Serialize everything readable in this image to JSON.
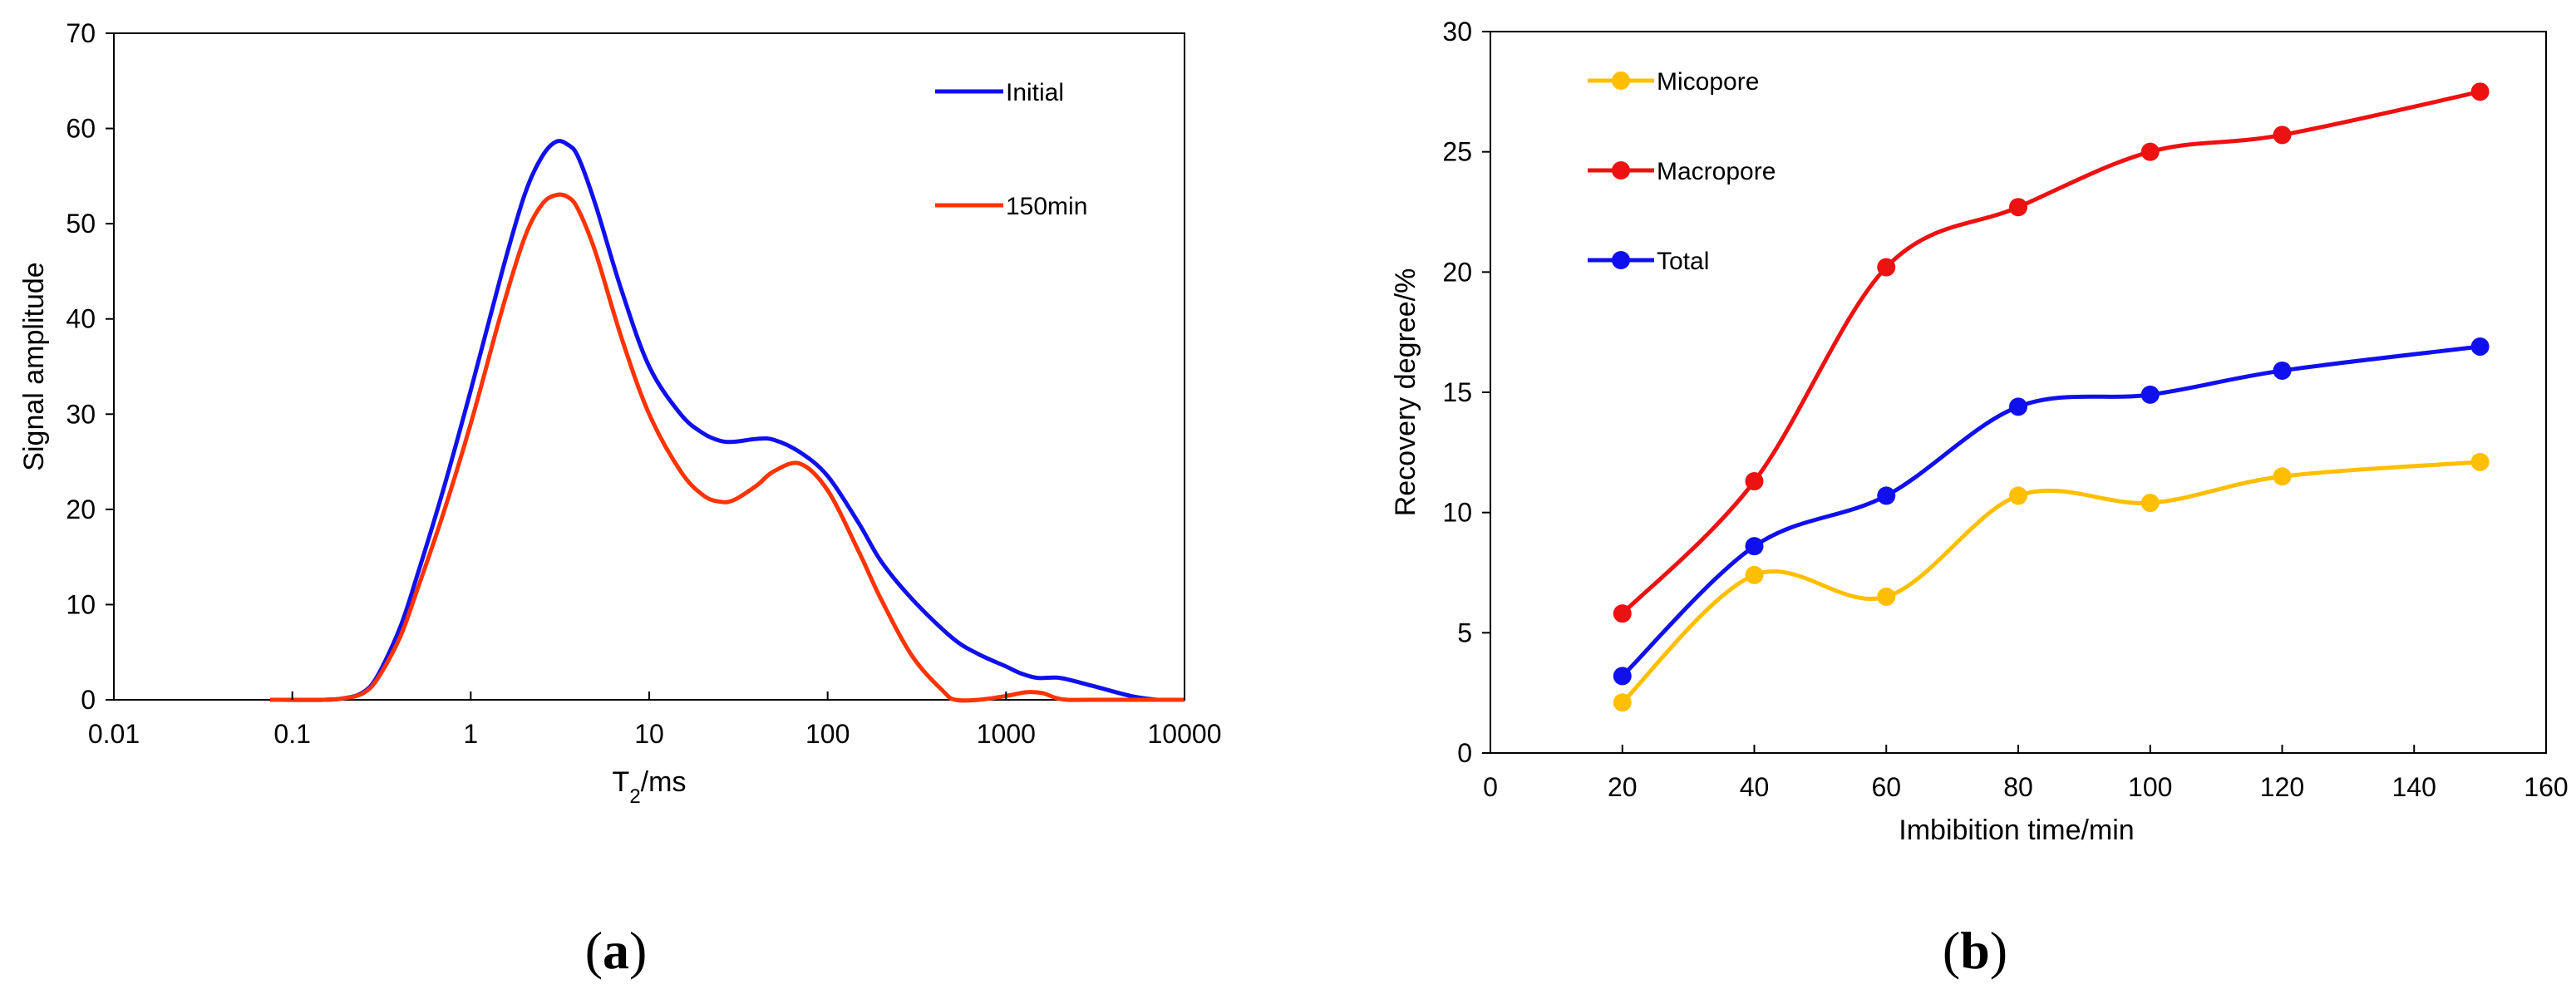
{
  "chart_data": [
    {
      "type": "line",
      "panel_label": {
        "open": "(",
        "letter": "a",
        "close": ")"
      },
      "title": "",
      "xlabel": {
        "base": "T",
        "subscript": "2",
        "suffix": "/ms"
      },
      "ylabel": "Signal amplitude",
      "x_scale": "log",
      "xlim": [
        0.01,
        10000
      ],
      "ylim": [
        0,
        70
      ],
      "x_ticks": [
        {
          "value": 0.01,
          "label": "0.01"
        },
        {
          "value": 0.1,
          "label": "0.1"
        },
        {
          "value": 1,
          "label": "1"
        },
        {
          "value": 10,
          "label": "10"
        },
        {
          "value": 100,
          "label": "100"
        },
        {
          "value": 1000,
          "label": "1000"
        },
        {
          "value": 10000,
          "label": "10000"
        }
      ],
      "y_ticks": [
        0,
        10,
        20,
        30,
        40,
        50,
        60,
        70
      ],
      "grid": false,
      "legend_position": "top-right",
      "series": [
        {
          "name": "Initial",
          "color": "#1010ee",
          "x": [
            0.075,
            0.15,
            0.2,
            0.25,
            0.3,
            0.4,
            0.5,
            0.7,
            1.0,
            1.5,
            2.0,
            2.5,
            3.0,
            3.5,
            4.0,
            5.0,
            7.0,
            10,
            15,
            20,
            25,
            30,
            40,
            50,
            70,
            100,
            150,
            200,
            300,
            500,
            700,
            1000,
            1200,
            1500,
            2000,
            3000,
            5000,
            7000
          ],
          "values": [
            0,
            0,
            0.2,
            0.8,
            2.5,
            7.5,
            13,
            22,
            32.5,
            45,
            53,
            57,
            58.6,
            58.3,
            57,
            52,
            43,
            35,
            30,
            28,
            27.2,
            27.1,
            27.4,
            27.3,
            26,
            23.5,
            18.5,
            14.5,
            10.5,
            6.5,
            4.8,
            3.5,
            2.8,
            2.3,
            2.3,
            1.5,
            0.4,
            0
          ]
        },
        {
          "name": "150min",
          "color": "#ff3300",
          "x": [
            0.075,
            0.15,
            0.2,
            0.25,
            0.3,
            0.4,
            0.5,
            0.7,
            1.0,
            1.5,
            2.0,
            2.5,
            3.0,
            3.5,
            4.0,
            5.0,
            7.0,
            10,
            15,
            20,
            25,
            30,
            40,
            50,
            70,
            100,
            150,
            200,
            300,
            450,
            520,
            700,
            1000,
            1300,
            1600,
            1900,
            2200,
            3000,
            10000
          ],
          "values": [
            0,
            0,
            0.2,
            0.7,
            2.2,
            6.5,
            11.5,
            19.5,
            29,
            41,
            48.5,
            52,
            53,
            52.8,
            51.5,
            47,
            38,
            30,
            24,
            21.5,
            20.8,
            21,
            22.5,
            24,
            24.8,
            22,
            15.5,
            10.5,
            4.5,
            0.8,
            0,
            0,
            0.4,
            0.8,
            0.7,
            0.2,
            0,
            0,
            0
          ]
        }
      ]
    },
    {
      "type": "line",
      "panel_label": {
        "open": "(",
        "letter": "b",
        "close": ")"
      },
      "title": "",
      "xlabel": "Imbibition time/min",
      "ylabel": "Recovery degree/%",
      "xlim": [
        0,
        160
      ],
      "ylim": [
        0,
        30
      ],
      "x_ticks": [
        0,
        20,
        40,
        60,
        80,
        100,
        120,
        140,
        160
      ],
      "y_ticks": [
        0,
        5,
        10,
        15,
        20,
        25,
        30
      ],
      "grid": false,
      "legend_position": "top-left",
      "series": [
        {
          "name": "Micopore",
          "color": "#ffbf00",
          "x": [
            20,
            40,
            60,
            80,
            100,
            120,
            150
          ],
          "values": [
            2.1,
            7.4,
            6.5,
            10.7,
            10.4,
            11.5,
            12.1
          ]
        },
        {
          "name": "Macropore",
          "color": "#ee1111",
          "x": [
            20,
            40,
            60,
            80,
            100,
            120,
            150
          ],
          "values": [
            5.8,
            11.3,
            20.2,
            22.7,
            25.0,
            25.7,
            27.5
          ]
        },
        {
          "name": "Total",
          "color": "#1010ee",
          "x": [
            20,
            40,
            60,
            80,
            100,
            120,
            150
          ],
          "values": [
            3.2,
            8.6,
            10.7,
            14.4,
            14.9,
            15.9,
            16.9
          ]
        }
      ]
    }
  ]
}
